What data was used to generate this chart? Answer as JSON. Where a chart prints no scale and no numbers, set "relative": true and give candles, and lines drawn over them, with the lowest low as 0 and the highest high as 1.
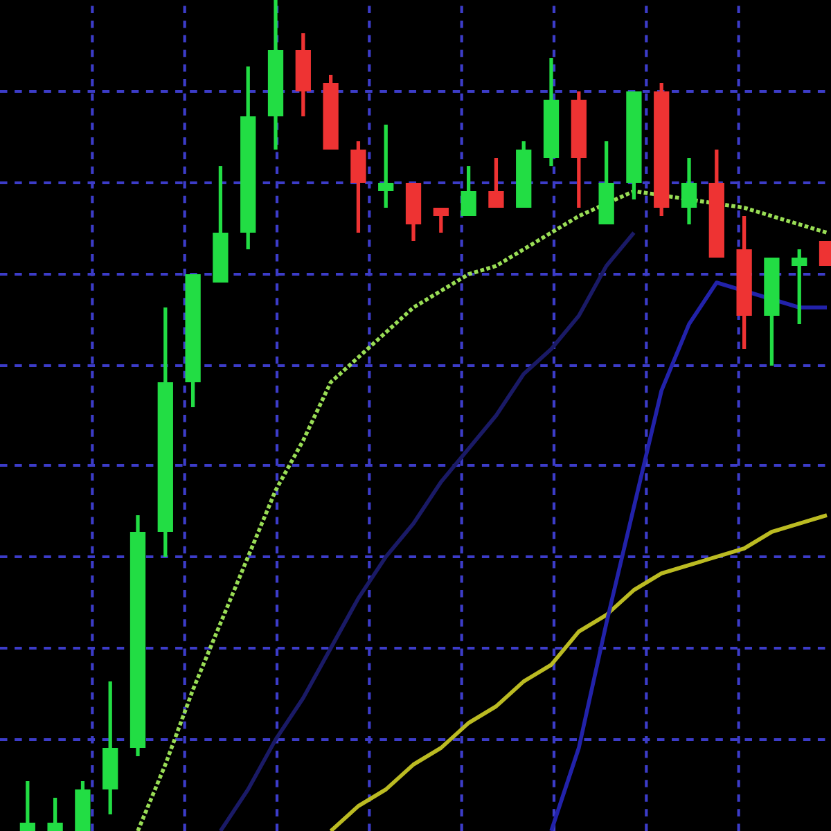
{
  "chart_data": {
    "type": "candlestick",
    "relative": true,
    "grid": true,
    "categories": [
      null,
      null,
      null,
      null,
      null,
      null,
      null,
      null,
      null,
      null,
      null,
      null,
      null,
      null,
      null,
      null,
      null,
      null,
      null,
      null,
      null,
      null,
      null,
      null,
      null,
      null,
      null,
      null,
      null,
      null
    ],
    "ohlc": [
      [
        0,
        0.06,
        0,
        0.01
      ],
      [
        0,
        0.04,
        0,
        0.01
      ],
      [
        0,
        0.06,
        0,
        0.05
      ],
      [
        0.05,
        0.18,
        0.02,
        0.1
      ],
      [
        0.1,
        0.38,
        0.09,
        0.36
      ],
      [
        0.36,
        0.63,
        0.33,
        0.54
      ],
      [
        0.54,
        0.67,
        0.51,
        0.67
      ],
      [
        0.66,
        0.8,
        0.66,
        0.72
      ],
      [
        0.72,
        0.92,
        0.7,
        0.86
      ],
      [
        0.86,
        1.0,
        0.82,
        0.94
      ],
      [
        0.94,
        0.96,
        0.86,
        0.89
      ],
      [
        0.9,
        0.91,
        0.82,
        0.82
      ],
      [
        0.82,
        0.83,
        0.72,
        0.78
      ],
      [
        0.77,
        0.85,
        0.75,
        0.78
      ],
      [
        0.78,
        0.78,
        0.71,
        0.73
      ],
      [
        0.75,
        0.75,
        0.72,
        0.74
      ],
      [
        0.74,
        0.8,
        0.74,
        0.77
      ],
      [
        0.77,
        0.81,
        0.75,
        0.75
      ],
      [
        0.75,
        0.83,
        0.75,
        0.82
      ],
      [
        0.81,
        0.93,
        0.8,
        0.88
      ],
      [
        0.88,
        0.89,
        0.75,
        0.81
      ],
      [
        0.73,
        0.83,
        0.73,
        0.78
      ],
      [
        0.78,
        0.89,
        0.76,
        0.89
      ],
      [
        0.89,
        0.9,
        0.74,
        0.75
      ],
      [
        0.75,
        0.81,
        0.73,
        0.78
      ],
      [
        0.78,
        0.82,
        0.69,
        0.69
      ],
      [
        0.7,
        0.74,
        0.58,
        0.62
      ],
      [
        0.62,
        0.69,
        0.56,
        0.69
      ],
      [
        0.68,
        0.7,
        0.61,
        0.69
      ],
      [
        0.71,
        0.71,
        0.68,
        0.68
      ]
    ],
    "colors": [
      "#22dd44",
      "#22dd44",
      "#22dd44",
      "#22dd44",
      "#22dd44",
      "#22dd44",
      "#22dd44",
      "#22dd44",
      "#22dd44",
      "#22dd44",
      "#ee3333",
      "#ee3333",
      "#ee3333",
      "#22dd44",
      "#ee3333",
      "#ee3333",
      "#22dd44",
      "#ee3333",
      "#22dd44",
      "#22dd44",
      "#ee3333",
      "#22dd44",
      "#22dd44",
      "#ee3333",
      "#22dd44",
      "#ee3333",
      "#ee3333",
      "#22dd44",
      "#22dd44",
      "#ee3333"
    ],
    "series": [
      {
        "type": "line",
        "color": "#99dd55",
        "line_style": "dotted",
        "values": [
          null,
          null,
          null,
          null,
          0,
          0.08,
          0.17,
          0.25,
          0.33,
          0.41,
          0.47,
          0.54,
          0.57,
          0.6,
          0.63,
          0.65,
          0.67,
          0.68,
          0.7,
          0.72,
          0.74,
          null,
          0.77,
          null,
          null,
          null,
          0.75,
          0.74,
          0.73,
          0.72
        ]
      },
      {
        "type": "line",
        "color": "#bbbb22",
        "line_style": "solid",
        "values": [
          null,
          null,
          null,
          null,
          null,
          null,
          null,
          null,
          null,
          null,
          null,
          0,
          0.03,
          0.05,
          0.08,
          0.1,
          0.13,
          0.15,
          0.18,
          0.2,
          0.24,
          0.26,
          0.29,
          0.31,
          0.32,
          0.33,
          0.34,
          0.36,
          0.37,
          0.38
        ]
      },
      {
        "type": "line",
        "color": "#1a1a66",
        "line_style": "solid",
        "values": [
          null,
          null,
          null,
          null,
          null,
          null,
          null,
          0,
          0.05,
          0.11,
          0.16,
          0.22,
          0.28,
          0.33,
          0.37,
          0.42,
          0.46,
          0.5,
          0.55,
          0.58,
          0.62,
          0.68,
          0.72,
          null,
          null,
          null,
          null,
          null,
          null,
          null
        ]
      },
      {
        "type": "line",
        "color": "#2222aa",
        "line_style": "solid",
        "values": [
          null,
          null,
          null,
          null,
          null,
          null,
          null,
          null,
          null,
          null,
          null,
          null,
          null,
          null,
          null,
          null,
          null,
          null,
          null,
          0,
          0.1,
          0.25,
          0.39,
          0.53,
          0.61,
          0.66,
          null,
          null,
          0.63,
          0.63
        ]
      }
    ]
  }
}
